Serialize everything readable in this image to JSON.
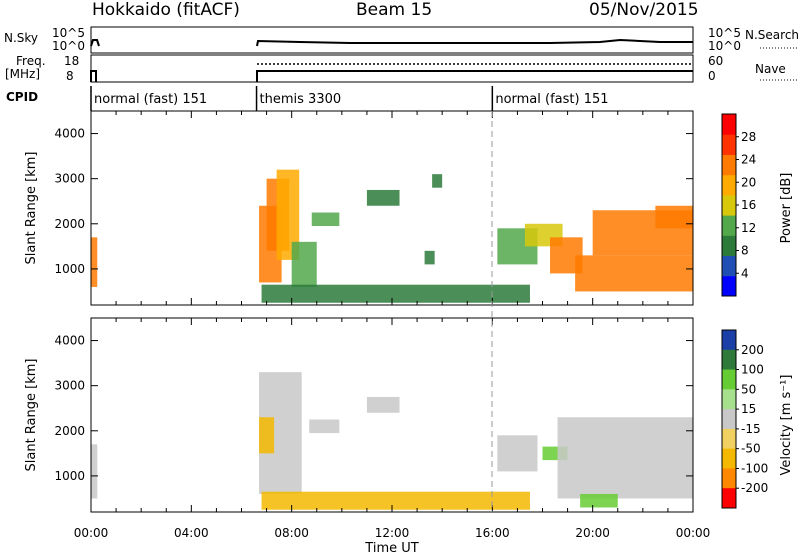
{
  "header": {
    "station": "Hokkaido (fitACF)",
    "beam": "Beam 15",
    "date": "05/Nov/2015"
  },
  "panels": {
    "nsky_label": "N.Sky",
    "nsearch_label": "N.Search",
    "freq_label": "Freq.",
    "freq_unit": "[MHz]",
    "nave_label": "Nave",
    "cpid_label": "CPID",
    "nsky_ticks": [
      "10^5",
      "10^0"
    ],
    "freq_ticks": [
      "18",
      "8"
    ],
    "nave_ticks": [
      "60",
      "0"
    ]
  },
  "cpid_segments": [
    {
      "start": 0.0,
      "end": 6.6,
      "label": "normal (fast) 151"
    },
    {
      "start": 6.6,
      "end": 16.0,
      "label": "themis 3300"
    },
    {
      "start": 16.0,
      "end": 24.0,
      "label": "normal (fast) 151"
    }
  ],
  "chart_data": [
    {
      "type": "heatmap",
      "quantity": "power",
      "ylabel": "Slant Range [km]",
      "xlabel": "Time UT",
      "xlim": [
        0,
        24
      ],
      "ylim": [
        200,
        4500
      ],
      "yticks": [
        "1000",
        "2000",
        "3000",
        "4000"
      ],
      "xticks": [
        "00:00",
        "04:00",
        "08:00",
        "12:00",
        "16:00",
        "20:00",
        "00:00"
      ],
      "colorbar": {
        "label": "Power [dB]",
        "ticks": [
          "4",
          "8",
          "12",
          "16",
          "20",
          "24",
          "28"
        ],
        "range": [
          0,
          32
        ]
      },
      "regions": [
        {
          "t": [
            0.0,
            0.25
          ],
          "r": [
            600,
            1700
          ],
          "value": 27
        },
        {
          "t": [
            6.7,
            7.6
          ],
          "r": [
            700,
            2400
          ],
          "value": 26
        },
        {
          "t": [
            7.0,
            7.9
          ],
          "r": [
            1400,
            3000
          ],
          "value": 24
        },
        {
          "t": [
            7.4,
            8.3
          ],
          "r": [
            1200,
            3200
          ],
          "value": 20
        },
        {
          "t": [
            8.0,
            9.0
          ],
          "r": [
            600,
            1600
          ],
          "value": 12
        },
        {
          "t": [
            8.8,
            9.9
          ],
          "r": [
            1950,
            2250
          ],
          "value": 14
        },
        {
          "t": [
            11.0,
            12.3
          ],
          "r": [
            2400,
            2750
          ],
          "value": 10
        },
        {
          "t": [
            13.6,
            14.0
          ],
          "r": [
            2800,
            3100
          ],
          "value": 8
        },
        {
          "t": [
            13.3,
            13.7
          ],
          "r": [
            1100,
            1400
          ],
          "value": 9
        },
        {
          "t": [
            6.8,
            17.5
          ],
          "r": [
            250,
            650
          ],
          "value": 10
        },
        {
          "t": [
            16.2,
            17.8
          ],
          "r": [
            1100,
            1900
          ],
          "value": 14
        },
        {
          "t": [
            17.3,
            18.8
          ],
          "r": [
            1500,
            2000
          ],
          "value": 16
        },
        {
          "t": [
            18.3,
            19.6
          ],
          "r": [
            900,
            1700
          ],
          "value": 24
        },
        {
          "t": [
            19.3,
            24.0
          ],
          "r": [
            500,
            1300
          ],
          "value": 27
        },
        {
          "t": [
            20.0,
            24.0
          ],
          "r": [
            1300,
            2300
          ],
          "value": 26
        },
        {
          "t": [
            22.5,
            24.0
          ],
          "r": [
            1900,
            2400
          ],
          "value": 27
        }
      ]
    },
    {
      "type": "heatmap",
      "quantity": "velocity",
      "ylabel": "Slant Range [km]",
      "xlabel": "Time UT",
      "xlim": [
        0,
        24
      ],
      "ylim": [
        200,
        4500
      ],
      "yticks": [
        "1000",
        "2000",
        "3000",
        "4000"
      ],
      "xticks": [
        "00:00",
        "04:00",
        "08:00",
        "12:00",
        "16:00",
        "20:00",
        "00:00"
      ],
      "colorbar": {
        "label": "Velocity [m s⁻¹]",
        "ticks": [
          "200",
          "100",
          "50",
          "15",
          "-15",
          "-50",
          "-100",
          "-200"
        ]
      },
      "regions": [
        {
          "t": [
            0.0,
            0.25
          ],
          "r": [
            500,
            1700
          ],
          "value": 0
        },
        {
          "t": [
            6.7,
            8.4
          ],
          "r": [
            600,
            3300
          ],
          "value": 0
        },
        {
          "t": [
            6.7,
            7.3
          ],
          "r": [
            1500,
            2300
          ],
          "value": -40
        },
        {
          "t": [
            8.7,
            9.9
          ],
          "r": [
            1950,
            2250
          ],
          "value": 0
        },
        {
          "t": [
            11.0,
            12.3
          ],
          "r": [
            2400,
            2750
          ],
          "value": 0
        },
        {
          "t": [
            6.8,
            17.5
          ],
          "r": [
            250,
            650
          ],
          "value": -60
        },
        {
          "t": [
            16.2,
            17.8
          ],
          "r": [
            1100,
            1900
          ],
          "value": 0
        },
        {
          "t": [
            18.0,
            19.0
          ],
          "r": [
            1350,
            1650
          ],
          "value": 60
        },
        {
          "t": [
            18.6,
            24.0
          ],
          "r": [
            500,
            2300
          ],
          "value": 0
        },
        {
          "t": [
            19.5,
            21.0
          ],
          "r": [
            300,
            600
          ],
          "value": 60
        }
      ]
    }
  ]
}
